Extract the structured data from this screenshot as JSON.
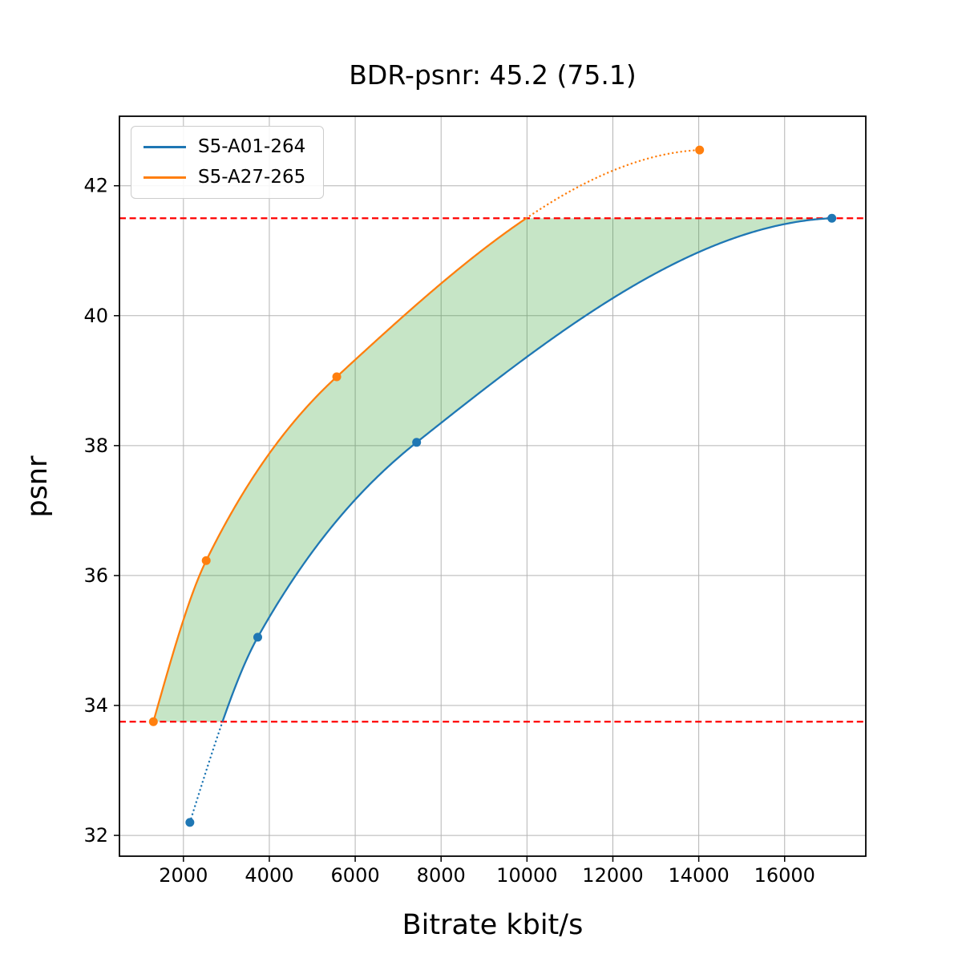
{
  "chart_data": {
    "type": "line",
    "title": "BDR-psnr: 45.2 (75.1)",
    "xlabel": "Bitrate kbit/s",
    "ylabel": "psnr",
    "xlim": [
      510,
      17890
    ],
    "ylim": [
      31.68,
      43.07
    ],
    "x_ticks": [
      2000,
      4000,
      6000,
      8000,
      10000,
      12000,
      14000,
      16000
    ],
    "y_ticks": [
      32,
      34,
      36,
      38,
      40,
      42
    ],
    "grid": true,
    "legend_position": "upper-left",
    "series": [
      {
        "name": "S5-A01-264",
        "color": "#1f77b4",
        "points": [
          [
            2150,
            32.2
          ],
          [
            3730,
            35.05
          ],
          [
            7430,
            38.05
          ],
          [
            17100,
            41.5
          ]
        ]
      },
      {
        "name": "S5-A27-265",
        "color": "#ff7f0e",
        "points": [
          [
            1300,
            33.75
          ],
          [
            2530,
            36.23
          ],
          [
            5570,
            39.06
          ],
          [
            14020,
            42.55
          ]
        ]
      }
    ],
    "reference_lines": {
      "style": "dashed",
      "color": "#ff0000",
      "y_values": [
        33.75,
        41.5
      ]
    },
    "shaded_region": {
      "description": "area between the two curves clipped to overlapping psnr range",
      "color": "#2ca02c",
      "opacity": 0.27
    }
  }
}
